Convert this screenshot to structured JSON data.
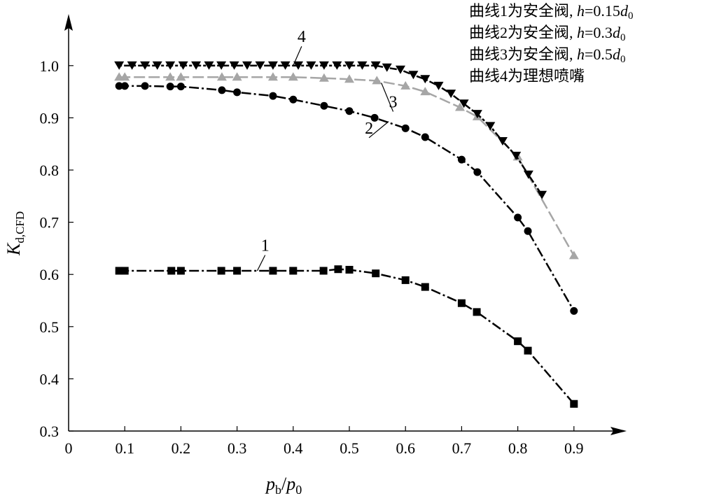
{
  "chart_data": {
    "type": "line",
    "title": "",
    "xlabel": {
      "main": "p",
      "sub1": "b",
      "slash": "/",
      "main2": "p",
      "sub2": "0"
    },
    "ylabel": {
      "main": "K",
      "sub": "d,CFD"
    },
    "xlim": [
      0,
      0.95
    ],
    "ylim": [
      0.3,
      1.1
    ],
    "x_ticks": [
      "0",
      "0.1",
      "0.2",
      "0.3",
      "0.4",
      "0.5",
      "0.6",
      "0.7",
      "0.8",
      "0.9"
    ],
    "y_ticks": [
      "0.3",
      "0.4",
      "0.5",
      "0.6",
      "0.7",
      "0.8",
      "0.9",
      "1.0"
    ],
    "grid": false,
    "legend_placement": "top-right",
    "legend": [
      {
        "prefix": "曲线1为安全阀, ",
        "var": "h",
        "eq": "=0.15",
        "d": "d",
        "sub": "0"
      },
      {
        "prefix": "曲线2为安全阀, ",
        "var": "h",
        "eq": "=0.3",
        "d": "d",
        "sub": "0"
      },
      {
        "prefix": "曲线3为安全阀, ",
        "var": "h",
        "eq": "=0.5",
        "d": "d",
        "sub": "0"
      },
      {
        "prefix": "曲线4为理想喷嘴",
        "var": "",
        "eq": "",
        "d": "",
        "sub": ""
      }
    ],
    "series": [
      {
        "label": "1",
        "marker": "square",
        "color": "#000000",
        "dash": "dashdot",
        "x": [
          0.09,
          0.1,
          0.183,
          0.2,
          0.272,
          0.3,
          0.364,
          0.4,
          0.454,
          0.48,
          0.5,
          0.547,
          0.6,
          0.635,
          0.7,
          0.727,
          0.8,
          0.818,
          0.9
        ],
        "y": [
          0.607,
          0.607,
          0.607,
          0.607,
          0.607,
          0.607,
          0.607,
          0.607,
          0.607,
          0.61,
          0.609,
          0.602,
          0.589,
          0.576,
          0.545,
          0.528,
          0.472,
          0.454,
          0.352
        ]
      },
      {
        "label": "2",
        "marker": "circle",
        "color": "#000000",
        "dash": "dashdot",
        "x": [
          0.09,
          0.1,
          0.136,
          0.181,
          0.2,
          0.273,
          0.3,
          0.364,
          0.4,
          0.455,
          0.5,
          0.545,
          0.6,
          0.635,
          0.7,
          0.728,
          0.8,
          0.818,
          0.9
        ],
        "y": [
          0.961,
          0.961,
          0.961,
          0.96,
          0.96,
          0.953,
          0.949,
          0.942,
          0.935,
          0.923,
          0.913,
          0.9,
          0.88,
          0.863,
          0.82,
          0.796,
          0.709,
          0.683,
          0.53
        ]
      },
      {
        "label": "3",
        "marker": "triangle-up",
        "color": "#a6a6a6",
        "dash": "dashed",
        "x": [
          0.09,
          0.1,
          0.181,
          0.2,
          0.273,
          0.3,
          0.364,
          0.4,
          0.455,
          0.5,
          0.549,
          0.6,
          0.635,
          0.697,
          0.728,
          0.8,
          0.9
        ],
        "y": [
          0.978,
          0.978,
          0.978,
          0.978,
          0.978,
          0.978,
          0.978,
          0.978,
          0.976,
          0.974,
          0.971,
          0.961,
          0.95,
          0.92,
          0.902,
          0.825,
          0.636
        ]
      },
      {
        "label": "4",
        "marker": "triangle-down",
        "color": "#000000",
        "dash": "dotted",
        "x": [
          0.09,
          0.113,
          0.136,
          0.158,
          0.181,
          0.204,
          0.227,
          0.25,
          0.272,
          0.295,
          0.318,
          0.341,
          0.364,
          0.386,
          0.409,
          0.432,
          0.455,
          0.478,
          0.5,
          0.523,
          0.547,
          0.567,
          0.591,
          0.614,
          0.635,
          0.659,
          0.681,
          0.704,
          0.728,
          0.751,
          0.773,
          0.797,
          0.819,
          0.843
        ],
        "y": [
          1.0,
          1.0,
          1.0,
          1.0,
          1.0,
          1.0,
          1.0,
          1.0,
          1.0,
          1.0,
          1.0,
          1.0,
          1.0,
          1.0,
          1.0,
          1.0,
          1.0,
          1.0,
          1.0,
          1.0,
          1.0,
          0.996,
          0.992,
          0.982,
          0.974,
          0.961,
          0.946,
          0.927,
          0.907,
          0.884,
          0.855,
          0.827,
          0.791,
          0.752
        ]
      }
    ],
    "annotations": [
      {
        "text": "1",
        "x": 0.35,
        "y": 0.645,
        "to_x": 0.336,
        "to_y": 0.607
      },
      {
        "text": "2",
        "x": 0.535,
        "y": 0.87,
        "to_x": 0.57,
        "to_y": 0.893
      },
      {
        "text": "3",
        "x": 0.578,
        "y": 0.92,
        "to_x": 0.557,
        "to_y": 0.967
      },
      {
        "text": "4",
        "x": 0.415,
        "y": 1.045,
        "to_x": 0.4,
        "to_y": 1.0
      }
    ]
  }
}
